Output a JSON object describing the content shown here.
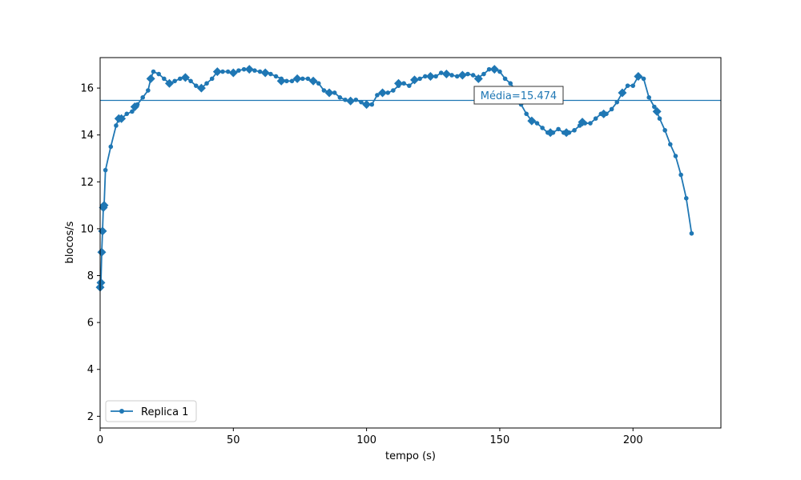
{
  "chart_data": {
    "type": "line",
    "xlabel": "tempo (s)",
    "ylabel": "blocos/s",
    "xlim": [
      0,
      233
    ],
    "ylim": [
      1.5,
      17.3
    ],
    "xticks": [
      0,
      50,
      100,
      150,
      200
    ],
    "yticks": [
      2,
      4,
      6,
      8,
      10,
      12,
      14,
      16
    ],
    "grid": false,
    "legend_position": "lower-left",
    "series_color": "#1f77b4",
    "series": [
      {
        "name": "Replica 1",
        "x": [
          0,
          0.3,
          0.6,
          0.9,
          1.2,
          1.5,
          2,
          4,
          6,
          7,
          8,
          10,
          12,
          13,
          14,
          16,
          18,
          19,
          20,
          22,
          24,
          26,
          28,
          30,
          32,
          34,
          36,
          38,
          40,
          42,
          44,
          46,
          48,
          50,
          52,
          54,
          56,
          58,
          60,
          62,
          64,
          66,
          68,
          70,
          72,
          74,
          76,
          78,
          80,
          82,
          84,
          86,
          88,
          90,
          92,
          94,
          96,
          98,
          100,
          102,
          104,
          106,
          108,
          110,
          112,
          114,
          116,
          118,
          120,
          122,
          124,
          126,
          128,
          130,
          132,
          134,
          136,
          138,
          140,
          142,
          144,
          146,
          148,
          150,
          152,
          154,
          156,
          158,
          160,
          162,
          164,
          166,
          168,
          170,
          172,
          174,
          176,
          178,
          180,
          182,
          184,
          186,
          188,
          190,
          192,
          194,
          196,
          198,
          200,
          202,
          204,
          206,
          208,
          209,
          210,
          212,
          214,
          216,
          218,
          220,
          222
        ],
        "y": [
          7.5,
          7.7,
          9.0,
          9.9,
          10.9,
          11.0,
          12.5,
          13.5,
          14.4,
          14.7,
          14.7,
          14.9,
          15.0,
          15.2,
          15.3,
          15.6,
          15.9,
          16.4,
          16.7,
          16.6,
          16.4,
          16.2,
          16.3,
          16.4,
          16.45,
          16.3,
          16.1,
          16.0,
          16.2,
          16.4,
          16.7,
          16.7,
          16.7,
          16.65,
          16.75,
          16.8,
          16.8,
          16.75,
          16.7,
          16.65,
          16.6,
          16.5,
          16.4,
          16.3,
          16.3,
          16.4,
          16.4,
          16.4,
          16.3,
          16.2,
          15.9,
          15.85,
          15.8,
          15.6,
          15.5,
          15.45,
          15.5,
          15.4,
          15.3,
          15.3,
          15.7,
          15.8,
          15.8,
          15.9,
          16.1,
          16.2,
          16.1,
          16.3,
          16.4,
          16.5,
          16.55,
          16.5,
          16.65,
          16.6,
          16.55,
          16.5,
          16.6,
          16.6,
          16.55,
          16.45,
          16.6,
          16.8,
          16.8,
          16.7,
          16.4,
          16.2,
          15.9,
          15.3,
          14.9,
          14.6,
          14.5,
          14.3,
          14.1,
          14.1,
          14.25,
          14.1,
          14.1,
          14.2,
          14.4,
          14.5,
          14.5,
          14.7,
          14.9,
          14.9,
          15.1,
          15.4,
          15.8,
          16.1,
          16.1,
          16.5,
          16.4,
          15.6,
          15.2,
          15.0,
          14.7,
          14.2,
          13.6,
          13.1,
          12.3,
          11.3,
          9.8
        ]
      }
    ],
    "highlighted_points": {
      "x": [
        0,
        0.3,
        0.6,
        0.9,
        1.2,
        1.5,
        7,
        8,
        13,
        19,
        26,
        32,
        38,
        44,
        50,
        56,
        62,
        68,
        74,
        80,
        86,
        94,
        100,
        106,
        112,
        118,
        124,
        130,
        136,
        142,
        148,
        155,
        162,
        169,
        175,
        181,
        189,
        196,
        202,
        209
      ],
      "y": [
        7.5,
        7.7,
        9.0,
        9.9,
        10.9,
        11.0,
        14.7,
        14.7,
        15.2,
        16.4,
        16.2,
        16.45,
        16.0,
        16.7,
        16.65,
        16.8,
        16.65,
        16.3,
        16.4,
        16.3,
        15.8,
        15.45,
        15.3,
        15.8,
        16.2,
        16.35,
        16.5,
        16.6,
        16.55,
        16.4,
        16.8,
        15.9,
        14.6,
        14.1,
        14.1,
        14.55,
        14.9,
        15.8,
        16.5,
        15.0
      ]
    },
    "mean_line": {
      "value": 15.474,
      "label": "Média=15.474"
    }
  }
}
